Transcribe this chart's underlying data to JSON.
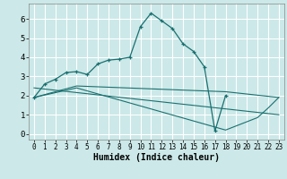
{
  "xlabel": "Humidex (Indice chaleur)",
  "ylabel": "",
  "bg_color": "#cce8e8",
  "grid_color": "#ffffff",
  "line_color": "#1a7070",
  "xlim": [
    -0.5,
    23.5
  ],
  "ylim": [
    -0.3,
    6.8
  ],
  "xticks": [
    0,
    1,
    2,
    3,
    4,
    5,
    6,
    7,
    8,
    9,
    10,
    11,
    12,
    13,
    14,
    15,
    16,
    17,
    18,
    19,
    20,
    21,
    22,
    23
  ],
  "yticks": [
    0,
    1,
    2,
    3,
    4,
    5,
    6
  ],
  "series1_x": [
    0,
    1,
    2,
    3,
    4,
    5,
    6,
    7,
    8,
    9,
    10,
    11,
    12,
    13,
    14,
    15,
    16,
    17,
    18
  ],
  "series1_y": [
    1.9,
    2.6,
    2.85,
    3.2,
    3.25,
    3.1,
    3.65,
    3.85,
    3.9,
    4.0,
    5.6,
    6.3,
    5.9,
    5.5,
    4.7,
    4.3,
    3.5,
    0.15,
    2.0
  ],
  "series2_x": [
    0,
    4,
    18,
    23
  ],
  "series2_y": [
    1.9,
    2.5,
    2.2,
    1.9
  ],
  "series3_x": [
    0,
    4,
    18,
    21,
    22,
    23
  ],
  "series3_y": [
    1.9,
    2.4,
    0.2,
    0.85,
    1.35,
    1.9
  ],
  "series4_x": [
    0,
    23
  ],
  "series4_y": [
    2.4,
    1.0
  ]
}
